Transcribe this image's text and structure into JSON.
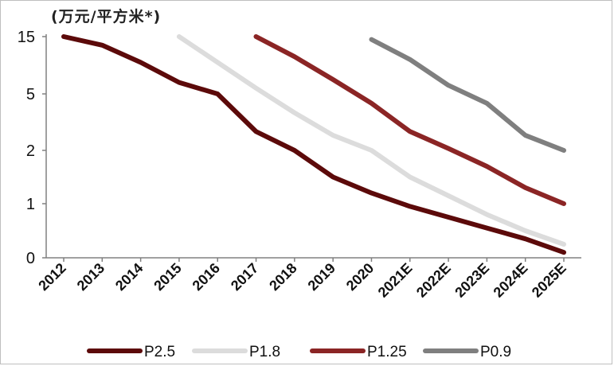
{
  "chart_data": {
    "type": "line",
    "title": "",
    "unit_label": "(万元/平方米*)",
    "xlabel": "",
    "ylabel": "",
    "y_scale": "nonlinear (tick positions: 0,1,2,5,15)",
    "y_ticks": [
      "0",
      "1",
      "2",
      "5",
      "15"
    ],
    "categories": [
      "2012",
      "2013",
      "2014",
      "2015",
      "2016",
      "2017",
      "2018",
      "2019",
      "2020",
      "2021E",
      "2022E",
      "2023E",
      "2024E",
      "2025E"
    ],
    "series": [
      {
        "name": "P2.5",
        "color": "#5c0a0a",
        "values": [
          15,
          13.5,
          10.5,
          7,
          5,
          3,
          2,
          1.5,
          1.2,
          0.95,
          0.75,
          0.55,
          0.35,
          0.1
        ]
      },
      {
        "name": "P1.8",
        "color": "#dcdcdc",
        "values": [
          null,
          null,
          null,
          15,
          10.5,
          6,
          4,
          2.8,
          2,
          1.5,
          1.15,
          0.8,
          0.5,
          0.25
        ]
      },
      {
        "name": "P1.25",
        "color": "#8b2525",
        "values": [
          null,
          null,
          null,
          null,
          null,
          15,
          11.5,
          7.5,
          4.5,
          3,
          2.1,
          1.7,
          1.3,
          1
        ]
      },
      {
        "name": "P0.9",
        "color": "#7f7f7f",
        "values": [
          null,
          null,
          null,
          null,
          null,
          null,
          null,
          null,
          14.5,
          11,
          6.5,
          4.5,
          2.8,
          2
        ]
      }
    ],
    "legend_position": "bottom",
    "grid": false
  }
}
